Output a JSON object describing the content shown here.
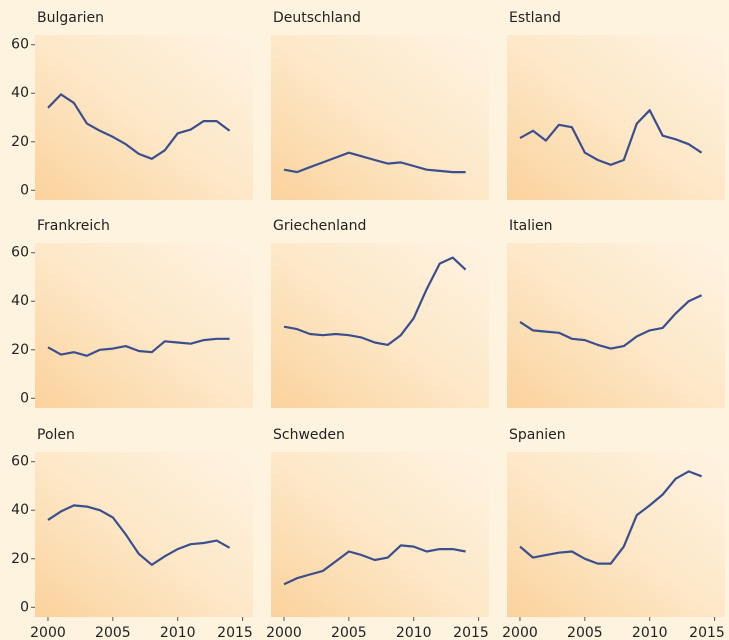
{
  "chart_data": [
    {
      "type": "line",
      "title": "Bulgarien",
      "color": "#3b4f8e",
      "xlim": [
        1999,
        2015.8
      ],
      "ylim": [
        -4,
        64
      ],
      "yticks": [
        0,
        20,
        40,
        60
      ],
      "x": [
        2000,
        2001,
        2002,
        2003,
        2004,
        2005,
        2006,
        2007,
        2008,
        2009,
        2010,
        2011,
        2012,
        2013,
        2014
      ],
      "values": [
        34,
        39.5,
        36,
        27.5,
        24.5,
        22,
        19,
        15,
        13,
        16.5,
        23.5,
        25,
        28.5,
        28.5,
        24.5
      ]
    },
    {
      "type": "line",
      "title": "Deutschland",
      "color": "#3b4f8e",
      "xlim": [
        1999,
        2015.8
      ],
      "ylim": [
        -4,
        64
      ],
      "x": [
        2000,
        2001,
        2002,
        2003,
        2004,
        2005,
        2006,
        2007,
        2008,
        2009,
        2010,
        2011,
        2012,
        2013,
        2014
      ],
      "values": [
        8.5,
        7.5,
        9.5,
        11.5,
        13.5,
        15.5,
        14,
        12.5,
        11,
        11.5,
        10,
        8.5,
        8,
        7.5,
        7.5
      ]
    },
    {
      "type": "line",
      "title": "Estland",
      "color": "#3b4f8e",
      "xlim": [
        1999,
        2015.8
      ],
      "ylim": [
        -4,
        64
      ],
      "x": [
        2000,
        2001,
        2002,
        2003,
        2004,
        2005,
        2006,
        2007,
        2008,
        2009,
        2010,
        2011,
        2012,
        2013,
        2014
      ],
      "values": [
        21.5,
        24.5,
        20.5,
        27,
        26,
        15.5,
        12.5,
        10.5,
        12.5,
        27.5,
        33,
        22.5,
        21,
        19,
        15.5
      ]
    },
    {
      "type": "line",
      "title": "Frankreich",
      "color": "#3b4f8e",
      "xlim": [
        1999,
        2015.8
      ],
      "ylim": [
        -4,
        64
      ],
      "yticks": [
        0,
        20,
        40,
        60
      ],
      "x": [
        2000,
        2001,
        2002,
        2003,
        2004,
        2005,
        2006,
        2007,
        2008,
        2009,
        2010,
        2011,
        2012,
        2013,
        2014
      ],
      "values": [
        21,
        18,
        19,
        17.5,
        20,
        20.5,
        21.5,
        19.5,
        19,
        23.5,
        23,
        22.5,
        24,
        24.5,
        24.5
      ]
    },
    {
      "type": "line",
      "title": "Griechenland",
      "color": "#3b4f8e",
      "xlim": [
        1999,
        2015.8
      ],
      "ylim": [
        -4,
        64
      ],
      "x": [
        2000,
        2001,
        2002,
        2003,
        2004,
        2005,
        2006,
        2007,
        2008,
        2009,
        2010,
        2011,
        2012,
        2013,
        2014
      ],
      "values": [
        29.5,
        28.5,
        26.5,
        26,
        26.5,
        26,
        25,
        23,
        22,
        26,
        33,
        45,
        55.5,
        58,
        53
      ]
    },
    {
      "type": "line",
      "title": "Italien",
      "color": "#3b4f8e",
      "xlim": [
        1999,
        2015.8
      ],
      "ylim": [
        -4,
        64
      ],
      "x": [
        2000,
        2001,
        2002,
        2003,
        2004,
        2005,
        2006,
        2007,
        2008,
        2009,
        2010,
        2011,
        2012,
        2013,
        2014
      ],
      "values": [
        31.5,
        28,
        27.5,
        27,
        24.5,
        24,
        22,
        20.5,
        21.5,
        25.5,
        28,
        29,
        35,
        40,
        42.5
      ]
    },
    {
      "type": "line",
      "title": "Polen",
      "color": "#3b4f8e",
      "xlim": [
        1999,
        2015.8
      ],
      "ylim": [
        -4,
        64
      ],
      "yticks": [
        0,
        20,
        40,
        60
      ],
      "xticks": [
        2000,
        2005,
        2010,
        2015
      ],
      "x": [
        2000,
        2001,
        2002,
        2003,
        2004,
        2005,
        2006,
        2007,
        2008,
        2009,
        2010,
        2011,
        2012,
        2013,
        2014
      ],
      "values": [
        36,
        39.5,
        42,
        41.5,
        40,
        37,
        30,
        22,
        17.5,
        21,
        24,
        26,
        26.5,
        27.5,
        24.5
      ]
    },
    {
      "type": "line",
      "title": "Schweden",
      "color": "#3b4f8e",
      "xlim": [
        1999,
        2015.8
      ],
      "ylim": [
        -4,
        64
      ],
      "xticks": [
        2000,
        2005,
        2010,
        2015
      ],
      "x": [
        2000,
        2001,
        2002,
        2003,
        2004,
        2005,
        2006,
        2007,
        2008,
        2009,
        2010,
        2011,
        2012,
        2013,
        2014
      ],
      "values": [
        9.5,
        12,
        13.5,
        15,
        19,
        23,
        21.5,
        19.5,
        20.5,
        25.5,
        25,
        23,
        24,
        24,
        23
      ]
    },
    {
      "type": "line",
      "title": "Spanien",
      "color": "#3b4f8e",
      "xlim": [
        1999,
        2015.8
      ],
      "ylim": [
        -4,
        64
      ],
      "xticks": [
        2000,
        2005,
        2010,
        2015
      ],
      "x": [
        2000,
        2001,
        2002,
        2003,
        2004,
        2005,
        2006,
        2007,
        2008,
        2009,
        2010,
        2011,
        2012,
        2013,
        2014
      ],
      "values": [
        25,
        20.5,
        21.5,
        22.5,
        23,
        20,
        18,
        18,
        25,
        38,
        42,
        46.5,
        53,
        56,
        54
      ]
    }
  ]
}
